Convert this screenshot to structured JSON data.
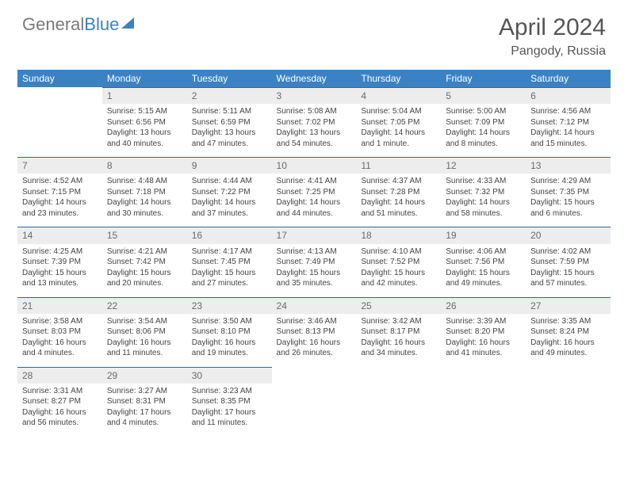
{
  "brand": {
    "part1": "General",
    "part2": "Blue"
  },
  "title": "April 2024",
  "location": "Pangody, Russia",
  "colors": {
    "header_bg": "#3b82c4",
    "header_text": "#ffffff",
    "daynum_bg": "#ededed",
    "daynum_border": "#30689c",
    "body_text": "#444444"
  },
  "day_headers": [
    "Sunday",
    "Monday",
    "Tuesday",
    "Wednesday",
    "Thursday",
    "Friday",
    "Saturday"
  ],
  "weeks": [
    [
      null,
      {
        "n": "1",
        "sr": "Sunrise: 5:15 AM",
        "ss": "Sunset: 6:56 PM",
        "d1": "Daylight: 13 hours",
        "d2": "and 40 minutes."
      },
      {
        "n": "2",
        "sr": "Sunrise: 5:11 AM",
        "ss": "Sunset: 6:59 PM",
        "d1": "Daylight: 13 hours",
        "d2": "and 47 minutes."
      },
      {
        "n": "3",
        "sr": "Sunrise: 5:08 AM",
        "ss": "Sunset: 7:02 PM",
        "d1": "Daylight: 13 hours",
        "d2": "and 54 minutes."
      },
      {
        "n": "4",
        "sr": "Sunrise: 5:04 AM",
        "ss": "Sunset: 7:05 PM",
        "d1": "Daylight: 14 hours",
        "d2": "and 1 minute."
      },
      {
        "n": "5",
        "sr": "Sunrise: 5:00 AM",
        "ss": "Sunset: 7:09 PM",
        "d1": "Daylight: 14 hours",
        "d2": "and 8 minutes."
      },
      {
        "n": "6",
        "sr": "Sunrise: 4:56 AM",
        "ss": "Sunset: 7:12 PM",
        "d1": "Daylight: 14 hours",
        "d2": "and 15 minutes."
      }
    ],
    [
      {
        "n": "7",
        "sr": "Sunrise: 4:52 AM",
        "ss": "Sunset: 7:15 PM",
        "d1": "Daylight: 14 hours",
        "d2": "and 23 minutes."
      },
      {
        "n": "8",
        "sr": "Sunrise: 4:48 AM",
        "ss": "Sunset: 7:18 PM",
        "d1": "Daylight: 14 hours",
        "d2": "and 30 minutes."
      },
      {
        "n": "9",
        "sr": "Sunrise: 4:44 AM",
        "ss": "Sunset: 7:22 PM",
        "d1": "Daylight: 14 hours",
        "d2": "and 37 minutes."
      },
      {
        "n": "10",
        "sr": "Sunrise: 4:41 AM",
        "ss": "Sunset: 7:25 PM",
        "d1": "Daylight: 14 hours",
        "d2": "and 44 minutes."
      },
      {
        "n": "11",
        "sr": "Sunrise: 4:37 AM",
        "ss": "Sunset: 7:28 PM",
        "d1": "Daylight: 14 hours",
        "d2": "and 51 minutes."
      },
      {
        "n": "12",
        "sr": "Sunrise: 4:33 AM",
        "ss": "Sunset: 7:32 PM",
        "d1": "Daylight: 14 hours",
        "d2": "and 58 minutes."
      },
      {
        "n": "13",
        "sr": "Sunrise: 4:29 AM",
        "ss": "Sunset: 7:35 PM",
        "d1": "Daylight: 15 hours",
        "d2": "and 6 minutes."
      }
    ],
    [
      {
        "n": "14",
        "sr": "Sunrise: 4:25 AM",
        "ss": "Sunset: 7:39 PM",
        "d1": "Daylight: 15 hours",
        "d2": "and 13 minutes."
      },
      {
        "n": "15",
        "sr": "Sunrise: 4:21 AM",
        "ss": "Sunset: 7:42 PM",
        "d1": "Daylight: 15 hours",
        "d2": "and 20 minutes."
      },
      {
        "n": "16",
        "sr": "Sunrise: 4:17 AM",
        "ss": "Sunset: 7:45 PM",
        "d1": "Daylight: 15 hours",
        "d2": "and 27 minutes."
      },
      {
        "n": "17",
        "sr": "Sunrise: 4:13 AM",
        "ss": "Sunset: 7:49 PM",
        "d1": "Daylight: 15 hours",
        "d2": "and 35 minutes."
      },
      {
        "n": "18",
        "sr": "Sunrise: 4:10 AM",
        "ss": "Sunset: 7:52 PM",
        "d1": "Daylight: 15 hours",
        "d2": "and 42 minutes."
      },
      {
        "n": "19",
        "sr": "Sunrise: 4:06 AM",
        "ss": "Sunset: 7:56 PM",
        "d1": "Daylight: 15 hours",
        "d2": "and 49 minutes."
      },
      {
        "n": "20",
        "sr": "Sunrise: 4:02 AM",
        "ss": "Sunset: 7:59 PM",
        "d1": "Daylight: 15 hours",
        "d2": "and 57 minutes."
      }
    ],
    [
      {
        "n": "21",
        "sr": "Sunrise: 3:58 AM",
        "ss": "Sunset: 8:03 PM",
        "d1": "Daylight: 16 hours",
        "d2": "and 4 minutes."
      },
      {
        "n": "22",
        "sr": "Sunrise: 3:54 AM",
        "ss": "Sunset: 8:06 PM",
        "d1": "Daylight: 16 hours",
        "d2": "and 11 minutes."
      },
      {
        "n": "23",
        "sr": "Sunrise: 3:50 AM",
        "ss": "Sunset: 8:10 PM",
        "d1": "Daylight: 16 hours",
        "d2": "and 19 minutes."
      },
      {
        "n": "24",
        "sr": "Sunrise: 3:46 AM",
        "ss": "Sunset: 8:13 PM",
        "d1": "Daylight: 16 hours",
        "d2": "and 26 minutes."
      },
      {
        "n": "25",
        "sr": "Sunrise: 3:42 AM",
        "ss": "Sunset: 8:17 PM",
        "d1": "Daylight: 16 hours",
        "d2": "and 34 minutes."
      },
      {
        "n": "26",
        "sr": "Sunrise: 3:39 AM",
        "ss": "Sunset: 8:20 PM",
        "d1": "Daylight: 16 hours",
        "d2": "and 41 minutes."
      },
      {
        "n": "27",
        "sr": "Sunrise: 3:35 AM",
        "ss": "Sunset: 8:24 PM",
        "d1": "Daylight: 16 hours",
        "d2": "and 49 minutes."
      }
    ],
    [
      {
        "n": "28",
        "sr": "Sunrise: 3:31 AM",
        "ss": "Sunset: 8:27 PM",
        "d1": "Daylight: 16 hours",
        "d2": "and 56 minutes."
      },
      {
        "n": "29",
        "sr": "Sunrise: 3:27 AM",
        "ss": "Sunset: 8:31 PM",
        "d1": "Daylight: 17 hours",
        "d2": "and 4 minutes."
      },
      {
        "n": "30",
        "sr": "Sunrise: 3:23 AM",
        "ss": "Sunset: 8:35 PM",
        "d1": "Daylight: 17 hours",
        "d2": "and 11 minutes."
      },
      null,
      null,
      null,
      null
    ]
  ]
}
